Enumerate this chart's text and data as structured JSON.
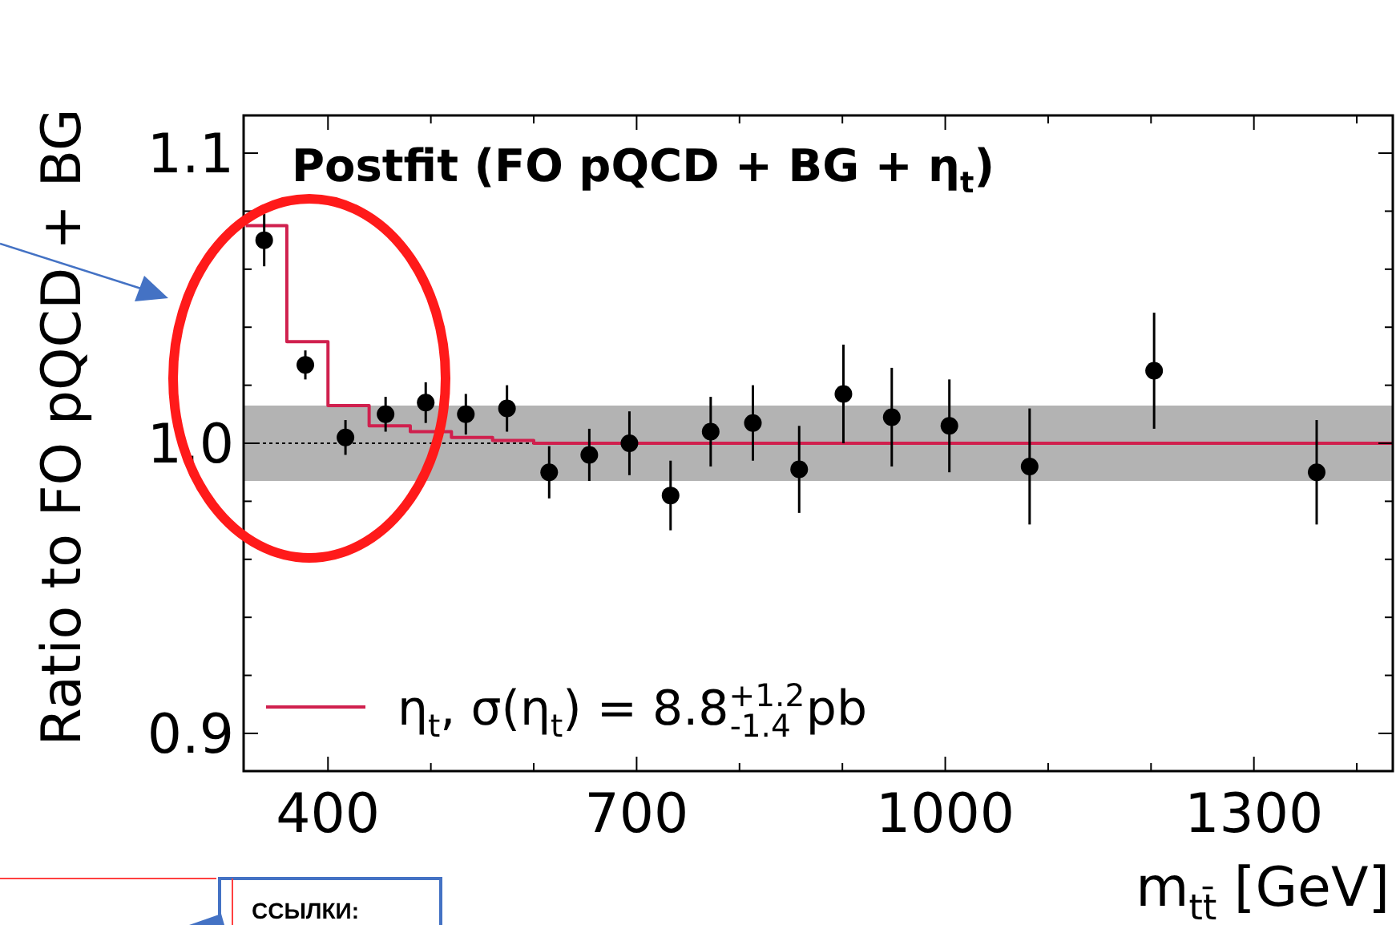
{
  "chart_data": {
    "type": "scatter",
    "title": "Postfit (FO pQCD + BG + η$_{t}$)",
    "xlabel": "m$_{tt̄}$ [GeV]",
    "ylabel": "Ratio to FO pQCD + BG",
    "xlim": [
      318,
      1435
    ],
    "ylim": [
      0.887,
      1.113
    ],
    "xticks": [
      400,
      {
        "value": 500,
        "label": null
      },
      {
        "value": 600,
        "label": null
      },
      700,
      {
        "value": 800,
        "label": null
      },
      {
        "value": 900,
        "label": null
      },
      1000,
      {
        "value": 1100,
        "label": null
      },
      {
        "value": 1200,
        "label": null
      },
      1300,
      {
        "value": 1400,
        "label": null
      }
    ],
    "yticks": [
      {
        "value": 0.9,
        "label": "0.9"
      },
      {
        "value": 0.92,
        "label": null
      },
      {
        "value": 0.94,
        "label": null
      },
      {
        "value": 0.96,
        "label": null
      },
      {
        "value": 0.98,
        "label": null
      },
      {
        "value": 1.0,
        "label": "1.0"
      },
      {
        "value": 1.02,
        "label": null
      },
      {
        "value": 1.04,
        "label": null
      },
      {
        "value": 1.06,
        "label": null
      },
      {
        "value": 1.08,
        "label": null
      },
      {
        "value": 1.1,
        "label": "1.1"
      }
    ],
    "grid": false,
    "legend": "bottom left",
    "bands": [
      {
        "axis": "y",
        "from": 0.987,
        "to": 1.013,
        "color": "#b3b3b3"
      }
    ],
    "ref_lines": [
      {
        "axis": "y",
        "value": 1.0,
        "color": "#000000",
        "line_style": "dotted"
      }
    ],
    "series": [
      {
        "type": "step",
        "name": "η$_{t}$, σ(η$_{t}$) = 8.8$^{+1.2}$$_{-1.4}$ pb",
        "color": "#d0204e",
        "x": [
          320,
          360,
          400,
          440,
          480,
          520,
          560,
          600,
          1435
        ],
        "values": [
          1.075,
          1.035,
          1.013,
          1.006,
          1.004,
          1.002,
          1.001,
          1.0,
          1.0
        ]
      },
      {
        "marker": "circle",
        "color": "#000000",
        "x": [
          338,
          378,
          417,
          456,
          495,
          534,
          574,
          615,
          654,
          693,
          733,
          772,
          813,
          858,
          901,
          948,
          1004,
          1082,
          1203,
          1361
        ],
        "values": [
          1.07,
          1.027,
          1.002,
          1.01,
          1.014,
          1.01,
          1.012,
          0.99,
          0.996,
          1.0,
          0.982,
          1.004,
          1.007,
          0.991,
          1.017,
          1.009,
          1.006,
          0.992,
          1.025,
          0.99
        ],
        "errors": [
          0.009,
          0.005,
          0.006,
          0.006,
          0.007,
          0.007,
          0.008,
          0.009,
          0.009,
          0.011,
          0.012,
          0.012,
          0.013,
          0.015,
          0.017,
          0.017,
          0.016,
          0.02,
          0.02,
          0.018
        ]
      }
    ],
    "annotations": [
      "ССЫЛКИ:"
    ]
  }
}
